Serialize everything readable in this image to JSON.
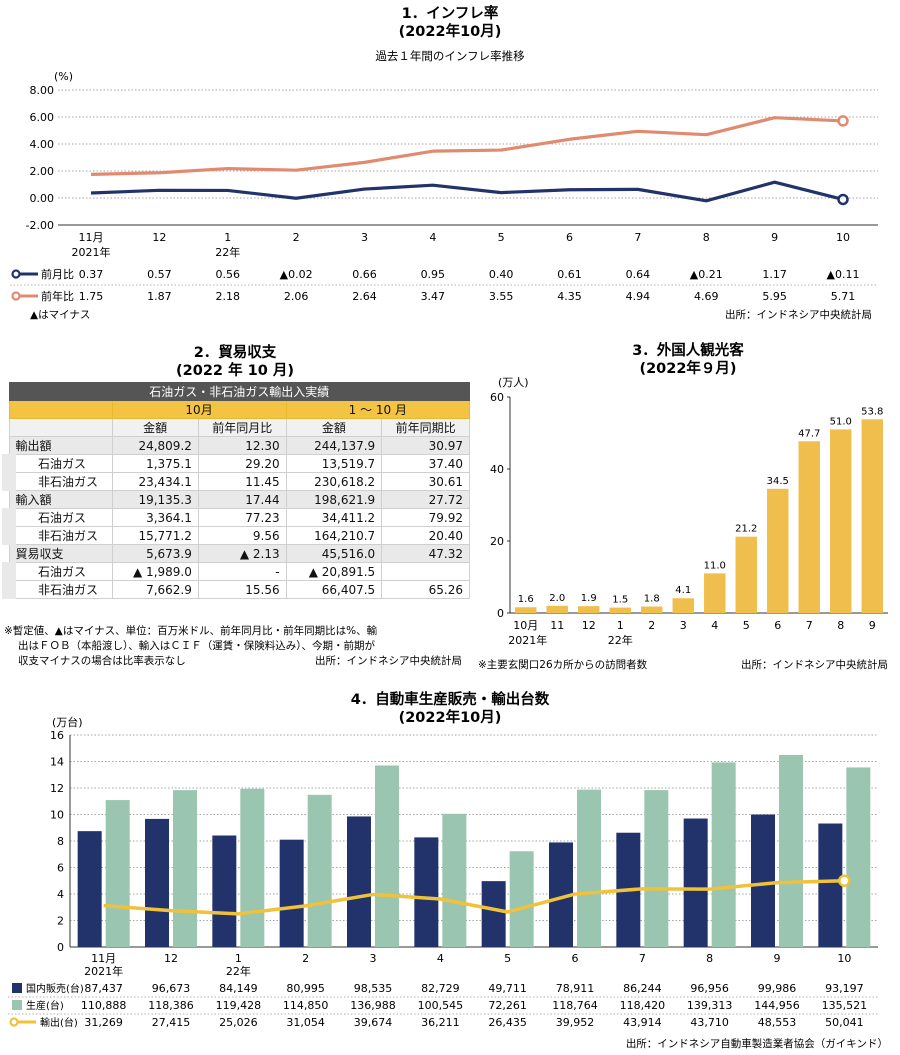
{
  "chart_data": [
    {
      "type": "line",
      "title": "1．インフレ率",
      "subtitle": "(2022年10月)",
      "caption": "過去１年間のインフレ率推移",
      "yunit": "(%)",
      "ylim": [
        -2,
        8
      ],
      "yticks": [
        "8.00",
        "6.00",
        "4.00",
        "2.00",
        "0.00",
        "-2.00"
      ],
      "categories": [
        "11月",
        "12",
        "1",
        "2",
        "3",
        "4",
        "5",
        "6",
        "7",
        "8",
        "9",
        "10"
      ],
      "cat_sub": [
        "2021年",
        "",
        "22年",
        "",
        "",
        "",
        "",
        "",
        "",
        "",
        "",
        ""
      ],
      "series": [
        {
          "name": "前月比",
          "color": "#22336b",
          "values": [
            0.37,
            0.57,
            0.56,
            -0.02,
            0.66,
            0.95,
            0.4,
            0.61,
            0.64,
            -0.21,
            1.17,
            -0.11
          ],
          "labels": [
            "0.37",
            "0.57",
            "0.56",
            "▲0.02",
            "0.66",
            "0.95",
            "0.40",
            "0.61",
            "0.64",
            "▲0.21",
            "1.17",
            "▲0.11"
          ]
        },
        {
          "name": "前年比",
          "color": "#e08a70",
          "values": [
            1.75,
            1.87,
            2.18,
            2.06,
            2.64,
            3.47,
            3.55,
            4.35,
            4.94,
            4.69,
            5.95,
            5.71
          ],
          "labels": [
            "1.75",
            "1.87",
            "2.18",
            "2.06",
            "2.64",
            "3.47",
            "3.55",
            "4.35",
            "4.94",
            "4.69",
            "5.95",
            "5.71"
          ]
        }
      ],
      "note": "▲はマイナス",
      "source": "出所：インドネシア中央統計局"
    },
    {
      "type": "bar",
      "title": "3．外国人観光客",
      "subtitle": "(2022年９月)",
      "yunit": "(万人)",
      "ylim": [
        0,
        60
      ],
      "yticks": [
        "60",
        "40",
        "20",
        "0"
      ],
      "categories": [
        "10月",
        "11",
        "12",
        "1",
        "2",
        "3",
        "4",
        "5",
        "6",
        "7",
        "8",
        "9"
      ],
      "cat_sub": [
        "2021年",
        "",
        "",
        "22年",
        "",
        "",
        "",
        "",
        "",
        "",
        "",
        ""
      ],
      "color": "#f0be4c",
      "values": [
        1.6,
        2.0,
        1.9,
        1.5,
        1.8,
        4.1,
        11.0,
        21.2,
        34.5,
        47.7,
        51.0,
        53.8
      ],
      "labels": [
        "1.6",
        "2.0",
        "1.9",
        "1.5",
        "1.8",
        "4.1",
        "11.0",
        "21.2",
        "34.5",
        "47.7",
        "51.0",
        "53.8"
      ],
      "note": "※主要玄関口26カ所からの訪問者数",
      "source": "出所：インドネシア中央統計局"
    },
    {
      "type": "bar",
      "title": "4．自動車生産販売・輸出台数",
      "subtitle": "(2022年10月)",
      "yunit": "(万台)",
      "ylim": [
        0,
        16
      ],
      "yticks": [
        "16",
        "14",
        "12",
        "10",
        "8",
        "6",
        "4",
        "2",
        "0"
      ],
      "categories": [
        "11月",
        "12",
        "1",
        "2",
        "3",
        "4",
        "5",
        "6",
        "7",
        "8",
        "9",
        "10"
      ],
      "cat_sub": [
        "2021年",
        "",
        "22年",
        "",
        "",
        "",
        "",
        "",
        "",
        "",
        "",
        ""
      ],
      "series": [
        {
          "name": "国内販売(台)",
          "kind": "bar",
          "color": "#22336b",
          "values": [
            87437,
            96673,
            84149,
            80995,
            98535,
            82729,
            49711,
            78911,
            86244,
            96956,
            99986,
            93197
          ],
          "labels": [
            "87,437",
            "96,673",
            "84,149",
            "80,995",
            "98,535",
            "82,729",
            "49,711",
            "78,911",
            "86,244",
            "96,956",
            "99,986",
            "93,197"
          ]
        },
        {
          "name": "生産(台)",
          "kind": "bar",
          "color": "#9ac5b1",
          "values": [
            110888,
            118386,
            119428,
            114850,
            136988,
            100545,
            72261,
            118764,
            118420,
            139313,
            144956,
            135521
          ],
          "labels": [
            "110,888",
            "118,386",
            "119,428",
            "114,850",
            "136,988",
            "100,545",
            "72,261",
            "118,764",
            "118,420",
            "139,313",
            "144,956",
            "135,521"
          ]
        },
        {
          "name": "輸出(台)",
          "kind": "line",
          "color": "#f0c23a",
          "values": [
            31269,
            27415,
            25026,
            31054,
            39674,
            36211,
            26435,
            39952,
            43914,
            43710,
            48553,
            50041
          ],
          "labels": [
            "31,269",
            "27,415",
            "25,026",
            "31,054",
            "39,674",
            "36,211",
            "26,435",
            "39,952",
            "43,914",
            "43,710",
            "48,553",
            "50,041"
          ]
        }
      ],
      "source": "出所：インドネシア自動車製造業者協会（ガイキンド）"
    }
  ],
  "trade": {
    "title": "2．貿易収支",
    "subtitle": "(2022 年 10 月)",
    "header_top": "石油ガス・非石油ガス輸出入実績",
    "period_a": "10月",
    "period_b": "1 ～ 10 月",
    "col_amount": "金額",
    "col_yoy_month": "前年同月比",
    "col_yoy_period": "前年同期比",
    "rows": [
      {
        "label": "輸出額",
        "group": true,
        "a": "24,809.2",
        "b": "12.30",
        "c": "244,137.9",
        "d": "30.97"
      },
      {
        "label": "石油ガス",
        "group": false,
        "a": "1,375.1",
        "b": "29.20",
        "c": "13,519.7",
        "d": "37.40"
      },
      {
        "label": "非石油ガス",
        "group": false,
        "a": "23,434.1",
        "b": "11.45",
        "c": "230,618.2",
        "d": "30.61"
      },
      {
        "label": "輸入額",
        "group": true,
        "a": "19,135.3",
        "b": "17.44",
        "c": "198,621.9",
        "d": "27.72"
      },
      {
        "label": "石油ガス",
        "group": false,
        "a": "3,364.1",
        "b": "77.23",
        "c": "34,411.2",
        "d": "79.92"
      },
      {
        "label": "非石油ガス",
        "group": false,
        "a": "15,771.2",
        "b": "9.56",
        "c": "164,210.7",
        "d": "20.40"
      },
      {
        "label": "貿易収支",
        "group": true,
        "a": "5,673.9",
        "b": "▲ 2.13",
        "c": "45,516.0",
        "d": "47.32"
      },
      {
        "label": "石油ガス",
        "group": false,
        "a": "▲ 1,989.0",
        "b": "-",
        "c": "▲ 20,891.5",
        "d": ""
      },
      {
        "label": "非石油ガス",
        "group": false,
        "a": "7,662.9",
        "b": "15.56",
        "c": "66,407.5",
        "d": "65.26"
      }
    ],
    "note1": "※暫定値、▲はマイナス、単位：百万米ドル、前年同月比・前年同期比は%、輸",
    "note2": "出はＦＯＢ（本船渡し）、輸入はＣＩＦ（運賃・保険料込み）、今期・前期が",
    "note3": "収支マイナスの場合は比率表示なし",
    "source": "出所：インドネシア中央統計局"
  }
}
